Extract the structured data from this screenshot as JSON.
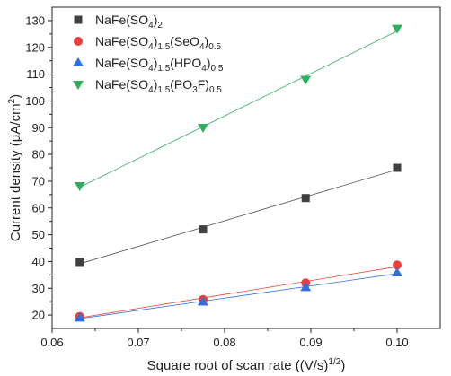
{
  "chart_data": {
    "type": "scatter",
    "xlabel": "Square root of scan rate ((V/s)",
    "xlabel_sup": "1/2",
    "xlabel_end": ")",
    "ylabel": "Current density (μA/cm",
    "ylabel_sup": "2",
    "ylabel_end": ")",
    "xlim": [
      0.06,
      0.105
    ],
    "ylim": [
      15,
      135
    ],
    "xticks": [
      0.06,
      0.07,
      0.08,
      0.09,
      0.1
    ],
    "xtick_labels": [
      "0.06",
      "0.07",
      "0.08",
      "0.09",
      "0.10"
    ],
    "yticks": [
      20,
      30,
      40,
      50,
      60,
      70,
      80,
      90,
      100,
      110,
      120,
      130
    ],
    "ytick_labels": [
      "20",
      "30",
      "40",
      "50",
      "60",
      "70",
      "80",
      "90",
      "100",
      "110",
      "120",
      "130"
    ],
    "x": [
      0.0632,
      0.0775,
      0.0894,
      0.1
    ],
    "legend_position": "top-left",
    "series": [
      {
        "name_parts": [
          [
            "NaFe(SO",
            ""
          ],
          [
            "4",
            "sub"
          ],
          [
            ")",
            ""
          ],
          [
            "2",
            "sub"
          ]
        ],
        "marker": "square",
        "color": "#404040",
        "fit_color": "#555555",
        "values": [
          39.8,
          52.0,
          63.7,
          75.0
        ]
      },
      {
        "name_parts": [
          [
            "NaFe(SO",
            ""
          ],
          [
            "4",
            "sub"
          ],
          [
            ")",
            ""
          ],
          [
            "1.5",
            "sub"
          ],
          [
            "(SeO",
            ""
          ],
          [
            "4",
            "sub"
          ],
          [
            ")",
            ""
          ],
          [
            "0.5",
            "sub"
          ]
        ],
        "marker": "circle",
        "color": "#e8403c",
        "fit_color": "#e8403c",
        "values": [
          19.5,
          25.8,
          32.0,
          38.7
        ]
      },
      {
        "name_parts": [
          [
            "NaFe(SO",
            ""
          ],
          [
            "4",
            "sub"
          ],
          [
            ")",
            ""
          ],
          [
            "1.5",
            "sub"
          ],
          [
            "(HPO",
            ""
          ],
          [
            "4",
            "sub"
          ],
          [
            ")",
            ""
          ],
          [
            "0.5",
            "sub"
          ]
        ],
        "marker": "triangle-up",
        "color": "#2f6fe0",
        "fit_color": "#2f6fe0",
        "values": [
          18.9,
          24.9,
          30.3,
          35.8
        ]
      },
      {
        "name_parts": [
          [
            "NaFe(SO",
            ""
          ],
          [
            "4",
            "sub"
          ],
          [
            ")",
            ""
          ],
          [
            "1.5",
            "sub"
          ],
          [
            "(PO",
            ""
          ],
          [
            "3",
            "sub"
          ],
          [
            "F)",
            ""
          ],
          [
            "0.5",
            "sub"
          ]
        ],
        "marker": "triangle-down",
        "color": "#2fb060",
        "fit_color": "#2fb060",
        "values": [
          68.3,
          90.1,
          108.0,
          127.1
        ]
      }
    ]
  }
}
